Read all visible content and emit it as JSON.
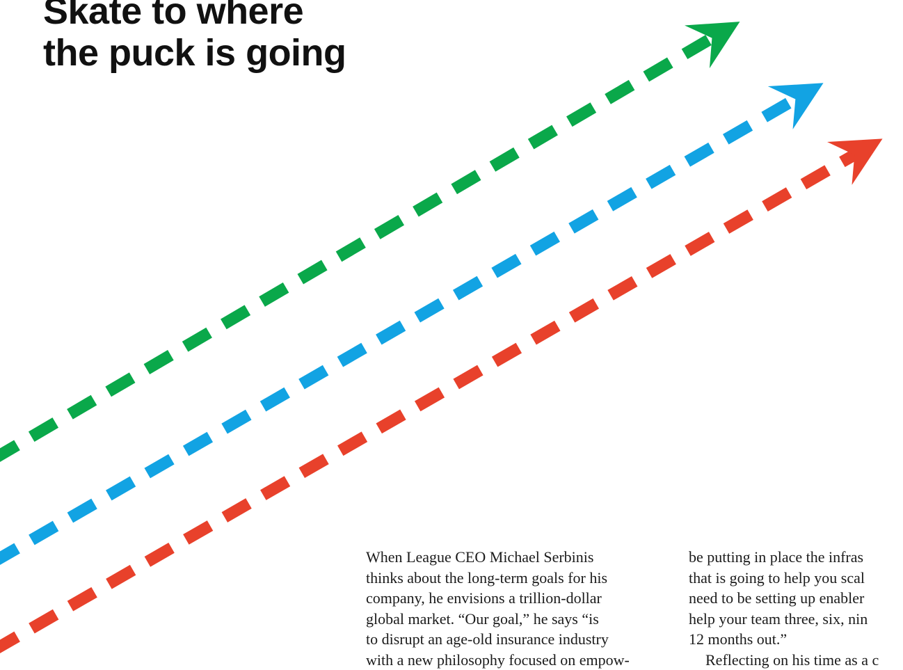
{
  "headline": {
    "line1": "Skate to where",
    "line2": "the puck is going"
  },
  "illustration": {
    "name": "three dashed arrows",
    "colors": {
      "green": "#0aa84a",
      "blue": "#12a3e3",
      "red": "#e8412b"
    }
  },
  "body": {
    "column1": [
      "When League CEO Michael Serbinis",
      "thinks about the long-term goals for his",
      "company, he envisions a trillion-dollar",
      "global market. “Our goal,” he says “is",
      "to disrupt an age-old insurance industry",
      "with a new philosophy focused on empow-"
    ],
    "column2": [
      "be putting in place the infras",
      "that is going to help you scal",
      "need to be setting up enabler",
      "help your team three, six, nin",
      "12 months out.”",
      "Reflecting on his time as a c"
    ]
  }
}
